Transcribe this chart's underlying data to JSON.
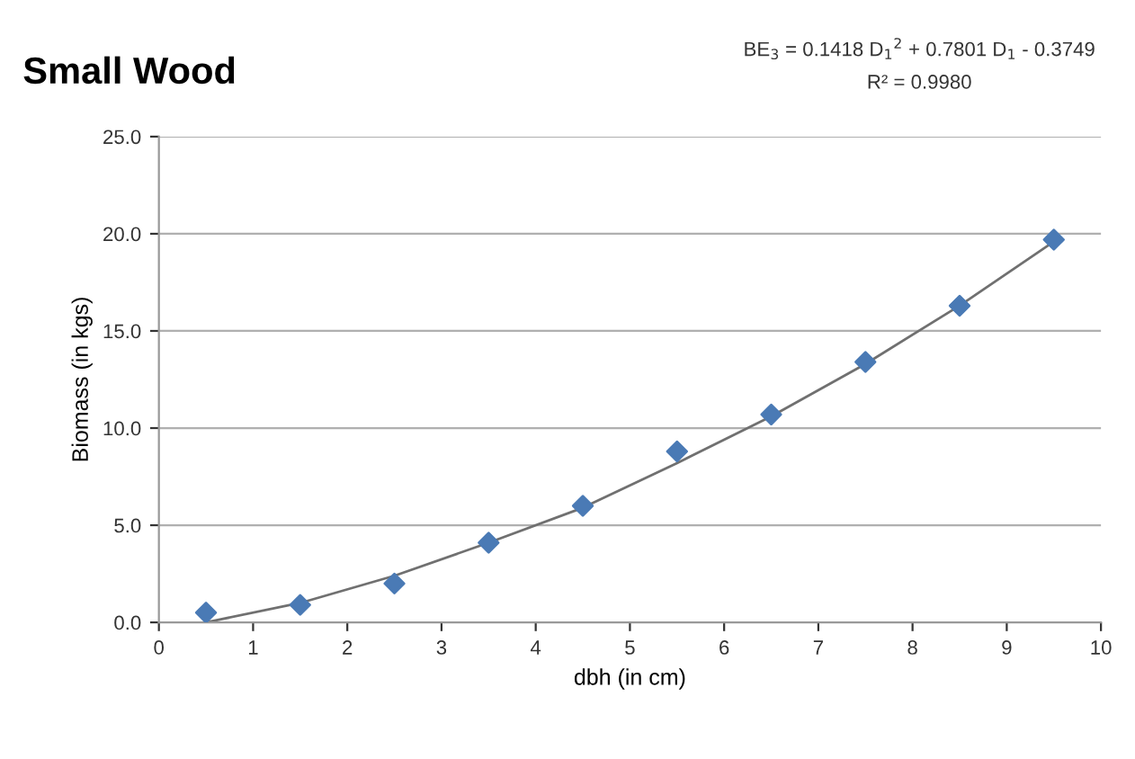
{
  "chart_data": {
    "type": "scatter",
    "title": "Small Wood",
    "xlabel": "dbh (in cm)",
    "ylabel": "Biomass (in kgs)",
    "annotations": [
      "BE$_{3}$ = 0.1418 D$_{1}$$^{2}$ + 0.7801 D$_{1}$ - 0.3749",
      "R² = 0.9980"
    ],
    "series": [
      {
        "color": "#4a7ab5",
        "marker": "diamond",
        "x": [
          0.5,
          1.5,
          2.5,
          3.5,
          4.5,
          5.5,
          6.5,
          7.5,
          8.5,
          9.5
        ],
        "values": [
          0.5,
          0.9,
          2.0,
          4.1,
          6.0,
          8.8,
          10.7,
          13.4,
          16.3,
          19.7
        ]
      },
      {
        "type": "line",
        "color": "#707070",
        "marker": "none",
        "line_style": "solid",
        "x": [
          0.5,
          1.5,
          2.5,
          3.5,
          4.5,
          5.5,
          6.5,
          7.5,
          8.5,
          9.5
        ],
        "values": [
          0.0,
          1.0,
          2.4,
          4.1,
          5.9,
          8.2,
          10.6,
          13.3,
          16.3,
          19.6
        ]
      }
    ],
    "xlim": [
      0,
      10
    ],
    "xticks": [
      0,
      1,
      2,
      3,
      4,
      5,
      6,
      7,
      8,
      9,
      10
    ],
    "ylim": [
      0,
      25
    ],
    "yticks": [
      {
        "value": 0,
        "label": "0.0"
      },
      {
        "value": 5,
        "label": "5.0"
      },
      {
        "value": 10,
        "label": "10.0"
      },
      {
        "value": 15,
        "label": "15.0"
      },
      {
        "value": 20,
        "label": "20.0"
      },
      {
        "value": 25,
        "label": "25.0"
      }
    ],
    "grid": "y",
    "legend": false
  }
}
